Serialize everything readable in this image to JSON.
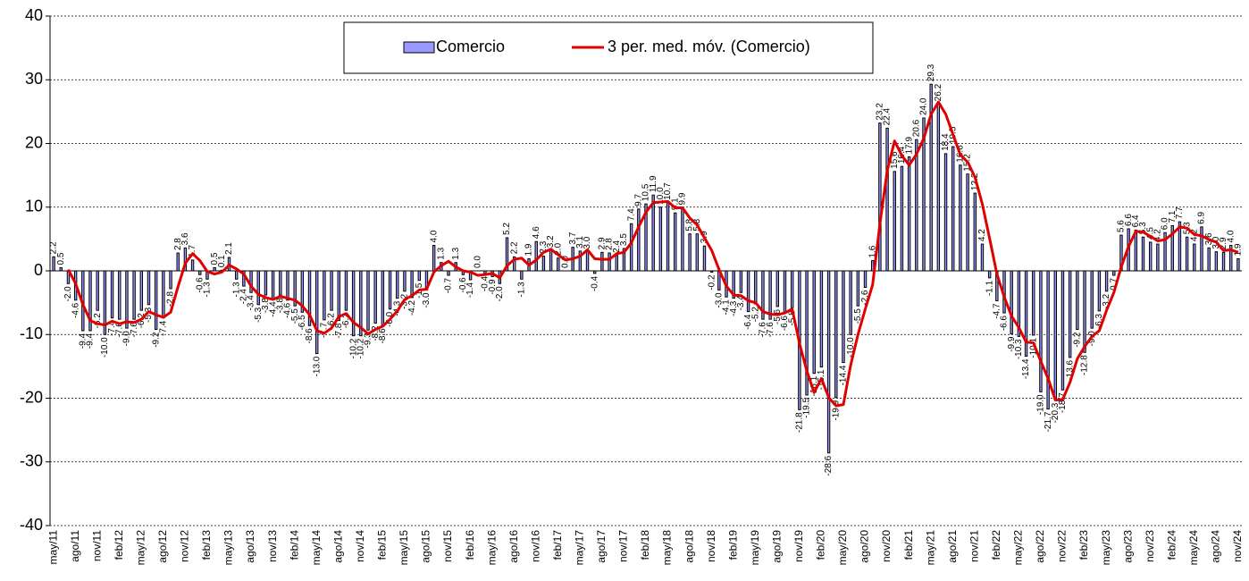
{
  "chart_data": {
    "type": "bar",
    "categories": [
      "may/11",
      null,
      null,
      "ago/11",
      null,
      null,
      "nov/11",
      null,
      null,
      "feb/12",
      null,
      null,
      "may/12",
      null,
      null,
      "ago/12",
      null,
      null,
      "nov/12",
      null,
      null,
      "feb/13",
      null,
      null,
      "may/13",
      null,
      null,
      "ago/13",
      null,
      null,
      "nov/13",
      null,
      null,
      "feb/14",
      null,
      null,
      "may/14",
      null,
      null,
      "ago/14",
      null,
      null,
      "nov/14",
      null,
      null,
      "feb/15",
      null,
      null,
      "may/15",
      null,
      null,
      "ago/15",
      null,
      null,
      "nov/15",
      null,
      null,
      "feb/16",
      null,
      null,
      "may/16",
      null,
      null,
      "ago/16",
      null,
      null,
      "nov/16",
      null,
      null,
      "feb/17",
      null,
      null,
      "may/17",
      null,
      null,
      "ago/17",
      null,
      null,
      "nov/17",
      null,
      null,
      "feb/18",
      null,
      null,
      "may/18",
      null,
      null,
      "ago/18",
      null,
      null,
      "nov/18",
      null,
      null,
      "feb/19",
      null,
      null,
      "may/19",
      null,
      null,
      "ago/19",
      null,
      null,
      "nov/19",
      null,
      null,
      "feb/20",
      null,
      null,
      "may/20",
      null,
      null,
      "ago/20",
      null,
      null,
      "nov/20",
      null,
      null,
      "feb/21",
      null,
      null,
      "may/21",
      null,
      null,
      "ago/21",
      null,
      null,
      "nov/21",
      null,
      null,
      "feb/22",
      null,
      null,
      "may/22",
      null,
      null,
      "ago/22",
      null,
      null,
      "nov/22",
      null,
      null,
      "feb/23",
      null,
      null,
      "may/23",
      null,
      null,
      "ago/23",
      null,
      null,
      "nov/23",
      null,
      null,
      "feb/24",
      null,
      null,
      "may/24",
      null,
      null,
      "ago/24",
      null,
      null,
      "nov/24"
    ],
    "series": [
      {
        "name": "Comercio",
        "color": "#9999ff",
        "type": "bar",
        "values": [
          2.2,
          0.5,
          -2.0,
          -4.6,
          -9.4,
          -9.4,
          -6.2,
          -10.0,
          -7.4,
          -7.6,
          -9.0,
          -7.6,
          -6.2,
          -5.3,
          -9.2,
          -7.4,
          -2.8,
          2.8,
          3.6,
          1.7,
          -0.6,
          -1.3,
          0.5,
          0.1,
          2.1,
          -1.3,
          -2.4,
          -3.4,
          -5.3,
          -3.8,
          -4.4,
          -3.8,
          -4.6,
          -5.5,
          -6.5,
          -8.6,
          -13.0,
          -7.7,
          -6.2,
          -7.8,
          -6.2,
          -10.2,
          -10.2,
          -9.3,
          -8.2,
          -8.6,
          -6.0,
          -4.3,
          -3.2,
          -4.2,
          -1.5,
          -3.0,
          4.0,
          1.3,
          -0.7,
          1.3,
          -0.6,
          -1.4,
          0.0,
          -0.4,
          -0.9,
          -2.0,
          5.2,
          2.2,
          -1.3,
          1.9,
          4.6,
          2.3,
          3.2,
          2.0,
          0.0,
          3.7,
          3.1,
          3.0,
          -0.4,
          2.9,
          2.8,
          2.4,
          3.5,
          7.4,
          9.7,
          10.5,
          11.9,
          10.0,
          10.7,
          9.1,
          9.9,
          5.8,
          5.8,
          3.9,
          -0.2,
          -3.0,
          -4.1,
          -4.3,
          -3.4,
          -6.4,
          -5.2,
          -7.6,
          -7.6,
          -5.6,
          -6.6,
          -5.8,
          -21.8,
          -19.5,
          -16.1,
          -15.1,
          -28.6,
          -19.9,
          -14.4,
          -10.0,
          -5.5,
          -2.6,
          1.6,
          23.2,
          22.4,
          15.6,
          16.4,
          17.9,
          20.6,
          24.0,
          29.3,
          26.2,
          18.4,
          19.5,
          16.6,
          15.2,
          12.2,
          4.2,
          -1.1,
          -4.7,
          -6.6,
          -9.9,
          -10.3,
          -13.4,
          -10.1,
          -19.0,
          -21.7,
          -20.3,
          -18.7,
          -13.6,
          -9.2,
          -12.8,
          -9.0,
          -6.3,
          -3.2,
          -0.7,
          5.6,
          6.6,
          6.4,
          5.3,
          4.5,
          4.2,
          6.0,
          7.1,
          7.7,
          5.3,
          4.2,
          6.9,
          3.6,
          3.0,
          2.9,
          4.0,
          1.9
        ],
        "value_labels": [
          "2.2",
          "0.5",
          "-2.0",
          "-4.6",
          "-9.4",
          "-9.4",
          "-6.2",
          "-10.0",
          "-7.4",
          "-7.6",
          "-9.0",
          "-7.6",
          "-6.2",
          "-5.3",
          "-9.2",
          "-7.4",
          "-2.8",
          "2.8",
          "3.6",
          "1.7",
          "-0.6",
          "-1.3",
          "0.5",
          "0.1",
          "2.1",
          "-1.3",
          "-2.4",
          "-3.4",
          "-5.3",
          "-3.8",
          "-4.4",
          "-3.8",
          "-4.6",
          "-5.5",
          "-6.5",
          "-8.6",
          "-13.0",
          "-7.7",
          "-6.2",
          "-7.8",
          "-6.2",
          "-10.2",
          "-10.2",
          "-9.3",
          "-8.2",
          "-8.6",
          "-6.0",
          "-4.3",
          "-3.2",
          "-4.2",
          "-1.5",
          "-3.0",
          "4.0",
          "1.3",
          "-0.7",
          "1.3",
          "-0.6",
          "-1.4",
          "0.0",
          "-0.4",
          "-0.9",
          "-2.0",
          "5.2",
          "2.2",
          "-1.3",
          "1.9",
          "4.6",
          "2.3",
          "3.2",
          "2.0",
          "0.0",
          "3.7",
          "3.1",
          "3.0",
          "-0.4",
          "2.9",
          "2.8",
          "2.4",
          "3.5",
          "7.4",
          "9.7",
          "10.5",
          "11.9",
          "10.0",
          "10.7",
          "9.1",
          "9.9",
          "5.8",
          "5.8",
          "3.9",
          "-0.2",
          "-3.0",
          "-4.1",
          "-4.3",
          "-3.4",
          "-6.4",
          "-5.2",
          "-7.6",
          "-7.6",
          "-5.6",
          "-6.6",
          "-5.8",
          "-21.8",
          "-19.5",
          "-16.1",
          "-15.1",
          "-28.6",
          "-19.9",
          "-14.4",
          "-10.0",
          "-5.5",
          "-2.6",
          "1.6",
          "23.2",
          "22.4",
          "15.6",
          "16.4",
          "17.9",
          "20.6",
          "24.0",
          "29.3",
          "26.2",
          "18.4",
          "19.5",
          "16.6",
          "15.2",
          "12.2",
          "4.2",
          "-1.1",
          "-4.7",
          "-6.6",
          "-9.9",
          "-10.3",
          "-13.4",
          "-10.1",
          "-19.0",
          "-21.7",
          "-20.3",
          "-18.7",
          "-13.6",
          "-9.2",
          "-12.8",
          "-9.0",
          "-6.3",
          "-3.2",
          "-0.7",
          "5.6",
          "6.6",
          "6.4",
          "5.3",
          "4.5",
          "4.2",
          "6.0",
          "7.1",
          "7.7",
          "5.3",
          "4.2",
          "6.9",
          "3.6",
          "3.0",
          "2.9",
          "4.0",
          "1.9"
        ]
      },
      {
        "name": "3 per. med. móv. (Comercio)",
        "color": "#e00000",
        "type": "line",
        "values": [
          null,
          null,
          0.2,
          -2.0,
          -5.3,
          -7.8,
          -8.3,
          -8.5,
          -7.9,
          -8.3,
          -8.0,
          -8.1,
          -7.6,
          -6.4,
          -6.9,
          -7.3,
          -6.5,
          -2.5,
          1.2,
          2.7,
          1.6,
          -0.1,
          -0.5,
          -0.2,
          0.9,
          0.3,
          -0.5,
          -2.4,
          -3.7,
          -4.2,
          -4.5,
          -4.0,
          -4.3,
          -4.6,
          -5.5,
          -6.9,
          -9.4,
          -9.8,
          -9.0,
          -7.2,
          -6.7,
          -8.1,
          -8.9,
          -9.9,
          -9.2,
          -8.7,
          -7.6,
          -6.3,
          -4.5,
          -3.9,
          -3.0,
          -2.9,
          -0.2,
          0.8,
          1.5,
          0.6,
          0.0,
          -0.2,
          -0.7,
          -0.6,
          -0.4,
          -1.1,
          0.8,
          1.8,
          2.0,
          0.9,
          1.7,
          2.9,
          3.4,
          2.5,
          1.7,
          1.9,
          2.3,
          3.3,
          1.9,
          1.8,
          1.8,
          2.7,
          2.9,
          4.4,
          6.9,
          9.2,
          10.7,
          10.8,
          10.9,
          9.9,
          9.9,
          8.3,
          7.2,
          5.2,
          3.2,
          0.2,
          -2.4,
          -3.8,
          -3.9,
          -4.7,
          -5.0,
          -6.4,
          -6.8,
          -6.9,
          -6.6,
          -6.0,
          -11.4,
          -15.7,
          -19.1,
          -16.9,
          -19.9,
          -21.2,
          -21.0,
          -14.8,
          -10.0,
          -6.0,
          -2.2,
          7.4,
          15.7,
          20.4,
          18.1,
          16.6,
          18.3,
          20.8,
          24.6,
          26.5,
          24.6,
          21.4,
          18.2,
          17.1,
          14.7,
          10.5,
          5.1,
          -0.5,
          -4.1,
          -7.1,
          -8.9,
          -11.2,
          -11.3,
          -14.2,
          -16.9,
          -20.3,
          -20.2,
          -17.5,
          -13.8,
          -11.9,
          -10.3,
          -9.4,
          -6.2,
          -3.4,
          0.6,
          3.8,
          6.2,
          6.1,
          5.4,
          4.7,
          4.9,
          5.8,
          6.9,
          6.7,
          5.7,
          5.5,
          4.9,
          4.5,
          3.2,
          3.3,
          2.9
        ]
      }
    ],
    "ylim": [
      -40,
      40
    ],
    "yticks": [
      -40,
      -30,
      -20,
      -10,
      0,
      10,
      20,
      30,
      40
    ],
    "grid": true
  }
}
